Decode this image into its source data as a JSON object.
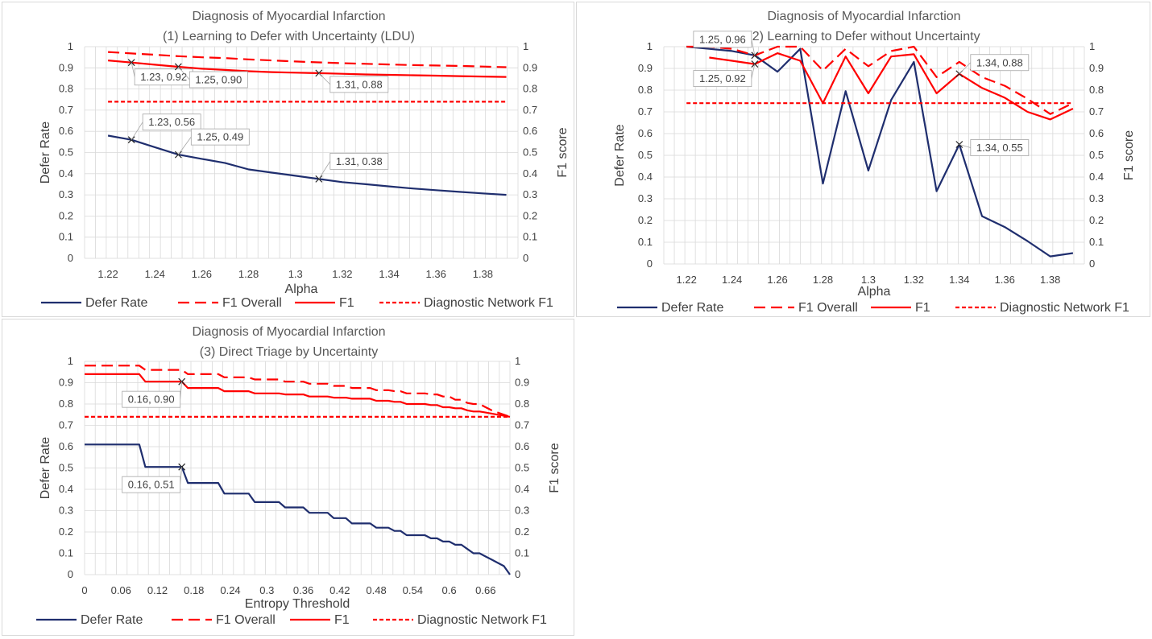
{
  "colors": {
    "navy": "#1f2e6e",
    "red": "#ff0000",
    "grid": "#d9d9d9",
    "border": "#d9d9d9",
    "callout": "#a6a6a6"
  },
  "legend_labels": [
    "Defer Rate",
    "F1 Overall",
    "F1",
    "Diagnostic Network F1"
  ],
  "chart_data": [
    {
      "type": "line",
      "title": "Diagnosis of Myocardial Infarction",
      "subtitle": "(1) Learning to Defer with Uncertainty (LDU)",
      "xlabel": "Alpha",
      "ylabel": "Defer Rate",
      "y2label": "F1 score",
      "xlim": [
        1.21,
        1.395
      ],
      "ylim": [
        0,
        1
      ],
      "y2lim": [
        0,
        1
      ],
      "xticks": [
        "1.22",
        "1.24",
        "1.26",
        "1.28",
        "1.3",
        "1.32",
        "1.34",
        "1.36",
        "1.38"
      ],
      "yticks": [
        "0",
        "0.1",
        "0.2",
        "0.3",
        "0.4",
        "0.5",
        "0.6",
        "0.7",
        "0.8",
        "0.9",
        "1"
      ],
      "legend_position": "bottom",
      "series": [
        {
          "name": "Defer Rate",
          "axis": "left",
          "style": "solid",
          "color": "#1f2e6e",
          "x": [
            1.22,
            1.23,
            1.24,
            1.25,
            1.26,
            1.27,
            1.28,
            1.29,
            1.3,
            1.31,
            1.32,
            1.33,
            1.34,
            1.35,
            1.36,
            1.37,
            1.38,
            1.39
          ],
          "y": [
            0.58,
            0.56,
            0.525,
            0.49,
            0.47,
            0.45,
            0.42,
            0.405,
            0.39,
            0.375,
            0.36,
            0.35,
            0.34,
            0.33,
            0.322,
            0.314,
            0.307,
            0.3
          ]
        },
        {
          "name": "F1 Overall",
          "axis": "right",
          "style": "dashed",
          "color": "#ff0000",
          "x": [
            1.22,
            1.23,
            1.24,
            1.25,
            1.26,
            1.27,
            1.28,
            1.29,
            1.3,
            1.31,
            1.32,
            1.33,
            1.34,
            1.35,
            1.36,
            1.37,
            1.38,
            1.39
          ],
          "y": [
            0.975,
            0.968,
            0.962,
            0.955,
            0.95,
            0.946,
            0.94,
            0.935,
            0.93,
            0.926,
            0.922,
            0.919,
            0.916,
            0.913,
            0.911,
            0.909,
            0.906,
            0.903
          ]
        },
        {
          "name": "F1",
          "axis": "right",
          "style": "solid",
          "color": "#ff0000",
          "x": [
            1.22,
            1.23,
            1.24,
            1.25,
            1.26,
            1.27,
            1.28,
            1.29,
            1.3,
            1.31,
            1.32,
            1.33,
            1.34,
            1.35,
            1.36,
            1.37,
            1.38,
            1.39
          ],
          "y": [
            0.935,
            0.925,
            0.915,
            0.905,
            0.896,
            0.89,
            0.884,
            0.88,
            0.877,
            0.875,
            0.872,
            0.869,
            0.867,
            0.865,
            0.863,
            0.861,
            0.859,
            0.857
          ]
        },
        {
          "name": "Diagnostic Network F1",
          "axis": "right",
          "style": "dotted",
          "color": "#ff0000",
          "x": [
            1.22,
            1.39
          ],
          "y": [
            0.74,
            0.74
          ]
        }
      ],
      "annotations": [
        {
          "label": "1.23, 0.92",
          "x": 1.23,
          "y": 0.925,
          "axis": "right"
        },
        {
          "label": "1.25, 0.90",
          "x": 1.25,
          "y": 0.905,
          "axis": "right"
        },
        {
          "label": "1.31, 0.88",
          "x": 1.31,
          "y": 0.875,
          "axis": "right"
        },
        {
          "label": "1.23, 0.56",
          "x": 1.23,
          "y": 0.56,
          "axis": "left"
        },
        {
          "label": "1.25, 0.49",
          "x": 1.25,
          "y": 0.49,
          "axis": "left"
        },
        {
          "label": "1.31, 0.38",
          "x": 1.31,
          "y": 0.375,
          "axis": "left"
        }
      ]
    },
    {
      "type": "line",
      "title": "Diagnosis of Myocardial Infarction",
      "subtitle": "(2) Learning to Defer without Uncertainty",
      "xlabel": "Alpha",
      "ylabel": "Defer Rate",
      "y2label": "F1 score",
      "xlim": [
        1.21,
        1.395
      ],
      "ylim": [
        0,
        1
      ],
      "y2lim": [
        0,
        1
      ],
      "xticks": [
        "1.22",
        "1.24",
        "1.26",
        "1.28",
        "1.3",
        "1.32",
        "1.34",
        "1.36",
        "1.38"
      ],
      "yticks": [
        "0",
        "0.1",
        "0.2",
        "0.3",
        "0.4",
        "0.5",
        "0.6",
        "0.7",
        "0.8",
        "0.9",
        "1"
      ],
      "legend_position": "bottom",
      "series": [
        {
          "name": "Defer Rate",
          "axis": "left",
          "style": "solid",
          "color": "#1f2e6e",
          "x": [
            1.22,
            1.23,
            1.24,
            1.25,
            1.26,
            1.27,
            1.28,
            1.29,
            1.3,
            1.31,
            1.32,
            1.33,
            1.34,
            1.35,
            1.36,
            1.37,
            1.38,
            1.39
          ],
          "y": [
            1.0,
            0.99,
            0.98,
            0.96,
            0.885,
            0.99,
            0.37,
            0.795,
            0.43,
            0.755,
            0.93,
            0.335,
            0.55,
            0.22,
            0.17,
            0.105,
            0.035,
            0.05
          ]
        },
        {
          "name": "F1 Overall",
          "axis": "right",
          "style": "dashed",
          "color": "#ff0000",
          "x": [
            1.22,
            1.23,
            1.24,
            1.25,
            1.26,
            1.27,
            1.28,
            1.29,
            1.3,
            1.31,
            1.32,
            1.33,
            1.34,
            1.35,
            1.36,
            1.37,
            1.38,
            1.39
          ],
          "y": [
            1.0,
            1.0,
            0.99,
            0.96,
            1.0,
            1.0,
            0.89,
            0.99,
            0.91,
            0.98,
            1.0,
            0.86,
            0.93,
            0.86,
            0.82,
            0.76,
            0.69,
            0.74
          ]
        },
        {
          "name": "F1",
          "axis": "right",
          "style": "solid",
          "color": "#ff0000",
          "x": [
            1.23,
            1.24,
            1.25,
            1.26,
            1.27,
            1.28,
            1.29,
            1.3,
            1.31,
            1.32,
            1.33,
            1.34,
            1.35,
            1.36,
            1.37,
            1.38,
            1.39
          ],
          "y": [
            0.95,
            0.935,
            0.92,
            0.97,
            0.935,
            0.74,
            0.955,
            0.785,
            0.955,
            0.965,
            0.785,
            0.875,
            0.81,
            0.765,
            0.7,
            0.665,
            0.715
          ]
        },
        {
          "name": "Diagnostic Network F1",
          "axis": "right",
          "style": "dotted",
          "color": "#ff0000",
          "x": [
            1.22,
            1.39
          ],
          "y": [
            0.74,
            0.74
          ]
        }
      ],
      "annotations": [
        {
          "label": "1.25, 0.96",
          "x": 1.25,
          "y": 0.96,
          "axis": "right"
        },
        {
          "label": "1.25, 0.92",
          "x": 1.25,
          "y": 0.92,
          "axis": "right"
        },
        {
          "label": "1.34, 0.88",
          "x": 1.34,
          "y": 0.875,
          "axis": "right"
        },
        {
          "label": "1.34, 0.55",
          "x": 1.34,
          "y": 0.55,
          "axis": "left"
        }
      ]
    },
    {
      "type": "line",
      "title": "Diagnosis of Myocardial Infarction",
      "subtitle": "(3) Direct Triage by Uncertainty",
      "xlabel": "Entropy Threshold",
      "ylabel": "Defer Rate",
      "y2label": "F1 score",
      "xlim": [
        0,
        0.7
      ],
      "ylim": [
        0,
        1
      ],
      "y2lim": [
        0,
        1
      ],
      "xticks": [
        "0",
        "0.06",
        "0.12",
        "0.18",
        "0.24",
        "0.3",
        "0.36",
        "0.42",
        "0.48",
        "0.54",
        "0.6",
        "0.66"
      ],
      "yticks": [
        "0",
        "0.1",
        "0.2",
        "0.3",
        "0.4",
        "0.5",
        "0.6",
        "0.7",
        "0.8",
        "0.9",
        "1"
      ],
      "legend_position": "bottom",
      "series": [
        {
          "name": "Defer Rate",
          "axis": "left",
          "style": "solid",
          "color": "#1f2e6e",
          "x": [
            0,
            0.09,
            0.1,
            0.16,
            0.17,
            0.22,
            0.23,
            0.27,
            0.28,
            0.32,
            0.33,
            0.36,
            0.37,
            0.4,
            0.41,
            0.43,
            0.44,
            0.47,
            0.48,
            0.5,
            0.51,
            0.52,
            0.53,
            0.56,
            0.57,
            0.58,
            0.59,
            0.6,
            0.61,
            0.62,
            0.63,
            0.64,
            0.65,
            0.66,
            0.67,
            0.68,
            0.69,
            0.7
          ],
          "y": [
            0.61,
            0.61,
            0.505,
            0.505,
            0.43,
            0.43,
            0.38,
            0.38,
            0.34,
            0.34,
            0.315,
            0.315,
            0.29,
            0.29,
            0.265,
            0.265,
            0.24,
            0.24,
            0.22,
            0.22,
            0.205,
            0.205,
            0.185,
            0.185,
            0.17,
            0.17,
            0.155,
            0.155,
            0.14,
            0.14,
            0.12,
            0.1,
            0.1,
            0.085,
            0.07,
            0.055,
            0.04,
            0.0
          ]
        },
        {
          "name": "F1 Overall",
          "axis": "right",
          "style": "dashed",
          "color": "#ff0000",
          "x": [
            0,
            0.09,
            0.1,
            0.16,
            0.17,
            0.22,
            0.23,
            0.27,
            0.28,
            0.32,
            0.33,
            0.36,
            0.37,
            0.4,
            0.41,
            0.43,
            0.44,
            0.47,
            0.48,
            0.5,
            0.51,
            0.52,
            0.53,
            0.56,
            0.57,
            0.58,
            0.59,
            0.6,
            0.61,
            0.62,
            0.63,
            0.64,
            0.65,
            0.66,
            0.67,
            0.68,
            0.69,
            0.7
          ],
          "y": [
            0.98,
            0.98,
            0.96,
            0.96,
            0.94,
            0.94,
            0.925,
            0.925,
            0.915,
            0.915,
            0.905,
            0.905,
            0.895,
            0.895,
            0.885,
            0.885,
            0.875,
            0.875,
            0.865,
            0.865,
            0.86,
            0.86,
            0.85,
            0.85,
            0.845,
            0.845,
            0.835,
            0.835,
            0.82,
            0.82,
            0.805,
            0.8,
            0.8,
            0.785,
            0.77,
            0.76,
            0.75,
            0.74
          ]
        },
        {
          "name": "F1",
          "axis": "right",
          "style": "solid",
          "color": "#ff0000",
          "x": [
            0,
            0.09,
            0.1,
            0.16,
            0.17,
            0.22,
            0.23,
            0.27,
            0.28,
            0.32,
            0.33,
            0.36,
            0.37,
            0.4,
            0.41,
            0.43,
            0.44,
            0.47,
            0.48,
            0.5,
            0.51,
            0.52,
            0.53,
            0.56,
            0.57,
            0.58,
            0.59,
            0.6,
            0.61,
            0.62,
            0.63,
            0.64,
            0.65,
            0.66,
            0.67,
            0.68,
            0.69,
            0.7
          ],
          "y": [
            0.94,
            0.94,
            0.905,
            0.905,
            0.875,
            0.875,
            0.86,
            0.86,
            0.85,
            0.85,
            0.845,
            0.845,
            0.835,
            0.835,
            0.83,
            0.83,
            0.825,
            0.825,
            0.815,
            0.815,
            0.81,
            0.81,
            0.8,
            0.8,
            0.795,
            0.795,
            0.785,
            0.785,
            0.78,
            0.78,
            0.77,
            0.765,
            0.765,
            0.76,
            0.755,
            0.75,
            0.745,
            0.74
          ]
        },
        {
          "name": "Diagnostic Network F1",
          "axis": "right",
          "style": "dotted",
          "color": "#ff0000",
          "x": [
            0,
            0.7
          ],
          "y": [
            0.74,
            0.74
          ]
        }
      ],
      "annotations": [
        {
          "label": "0.16, 0.90",
          "x": 0.16,
          "y": 0.905,
          "axis": "right"
        },
        {
          "label": "0.16, 0.51",
          "x": 0.16,
          "y": 0.505,
          "axis": "left"
        }
      ]
    }
  ]
}
